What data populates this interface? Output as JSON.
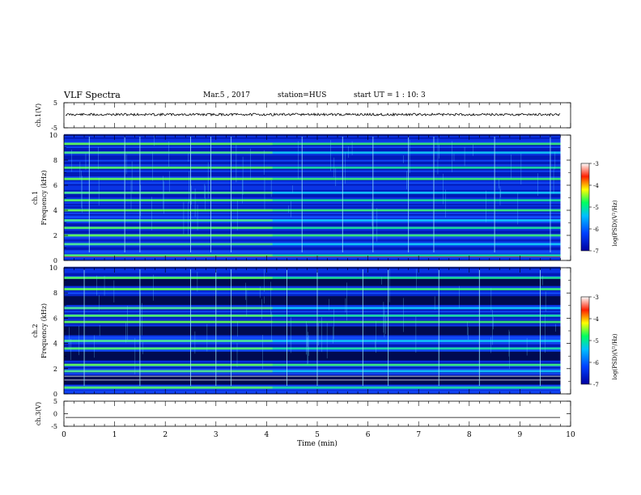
{
  "header": {
    "title": "VLF Spectra",
    "date": "Mar.5 , 2017",
    "station": "station=HUS",
    "start": "start UT = 1 : 10: 3"
  },
  "chart_data": [
    {
      "type": "line",
      "panel": "ch1-waveform",
      "ylabel": "ch.1(V)",
      "ylim": [
        -5,
        5
      ],
      "yticks": [
        "5",
        "-5"
      ],
      "xlim": [
        0,
        10
      ],
      "series": [
        {
          "values": "noisy trace near constant level",
          "level": 0.3
        }
      ]
    },
    {
      "type": "heatmap",
      "panel": "ch1-spectrogram",
      "ylabel": "ch.1\nFrequency (kHz)",
      "ylabel_lines": [
        "ch.1",
        "Frequency (kHz)"
      ],
      "ylim": [
        0,
        10
      ],
      "yticks": [
        "0",
        "2",
        "4",
        "6",
        "8",
        "10"
      ],
      "xlim": [
        0,
        9.8
      ],
      "colorbar": {
        "label": "log(PSD)(V²/Hz)",
        "ticks": [
          "-3",
          "-4",
          "-5",
          "-6",
          "-7"
        ],
        "range": [
          -7,
          -3
        ]
      },
      "bright_bands_khz": [
        0.4,
        1.3,
        2.0,
        2.6,
        3.2,
        4.0,
        4.8,
        5.4,
        6.5,
        7.4,
        8.6,
        9.3
      ],
      "dark_bands_khz": [],
      "overlay_line_khz": 0.3,
      "vertical_spikes_min": [
        0.5,
        1.2,
        1.5,
        2.5,
        2.9,
        3.3,
        4.7,
        5.5,
        6.1,
        6.8,
        7.3,
        8.5,
        9.6
      ]
    },
    {
      "type": "heatmap",
      "panel": "ch2-spectrogram",
      "ylabel": "ch.2\nFrequency (kHz)",
      "ylabel_lines": [
        "ch.2",
        "Frequency (kHz)"
      ],
      "ylim": [
        0,
        10
      ],
      "yticks": [
        "0",
        "2",
        "4",
        "6",
        "8",
        "10"
      ],
      "xlim": [
        0,
        9.8
      ],
      "colorbar": {
        "label": "log(PSD)(V²/Hz)",
        "ticks": [
          "-3",
          "-4",
          "-5",
          "-6",
          "-7"
        ],
        "range": [
          -7,
          -3
        ]
      },
      "bright_bands_khz": [
        0.5,
        1.8,
        2.3,
        3.6,
        4.2,
        5.7,
        6.2,
        6.8,
        8.3,
        9.2
      ],
      "dark_bands_khz": [
        1.0,
        2.9,
        4.9,
        7.3,
        8.8
      ],
      "overlay_line_khz": [
        1.1,
        1.4
      ],
      "vertical_spikes_min": [
        0.4,
        1.5,
        2.5,
        3.0,
        3.3,
        4.4,
        5.0,
        5.9,
        6.4,
        7.4,
        8.2,
        9.4
      ]
    },
    {
      "type": "line",
      "panel": "ch3-waveform",
      "ylabel": "ch.3(V)",
      "ylim": [
        -5,
        5
      ],
      "yticks": [
        "5",
        "0",
        "-5"
      ],
      "xlim": [
        0,
        10
      ],
      "xlabel": "Time (min)",
      "xticks": [
        "0",
        "1",
        "2",
        "3",
        "4",
        "5",
        "6",
        "7",
        "8",
        "9",
        "10"
      ],
      "series": [
        {
          "values": "flat",
          "level": -1.5
        }
      ]
    }
  ]
}
